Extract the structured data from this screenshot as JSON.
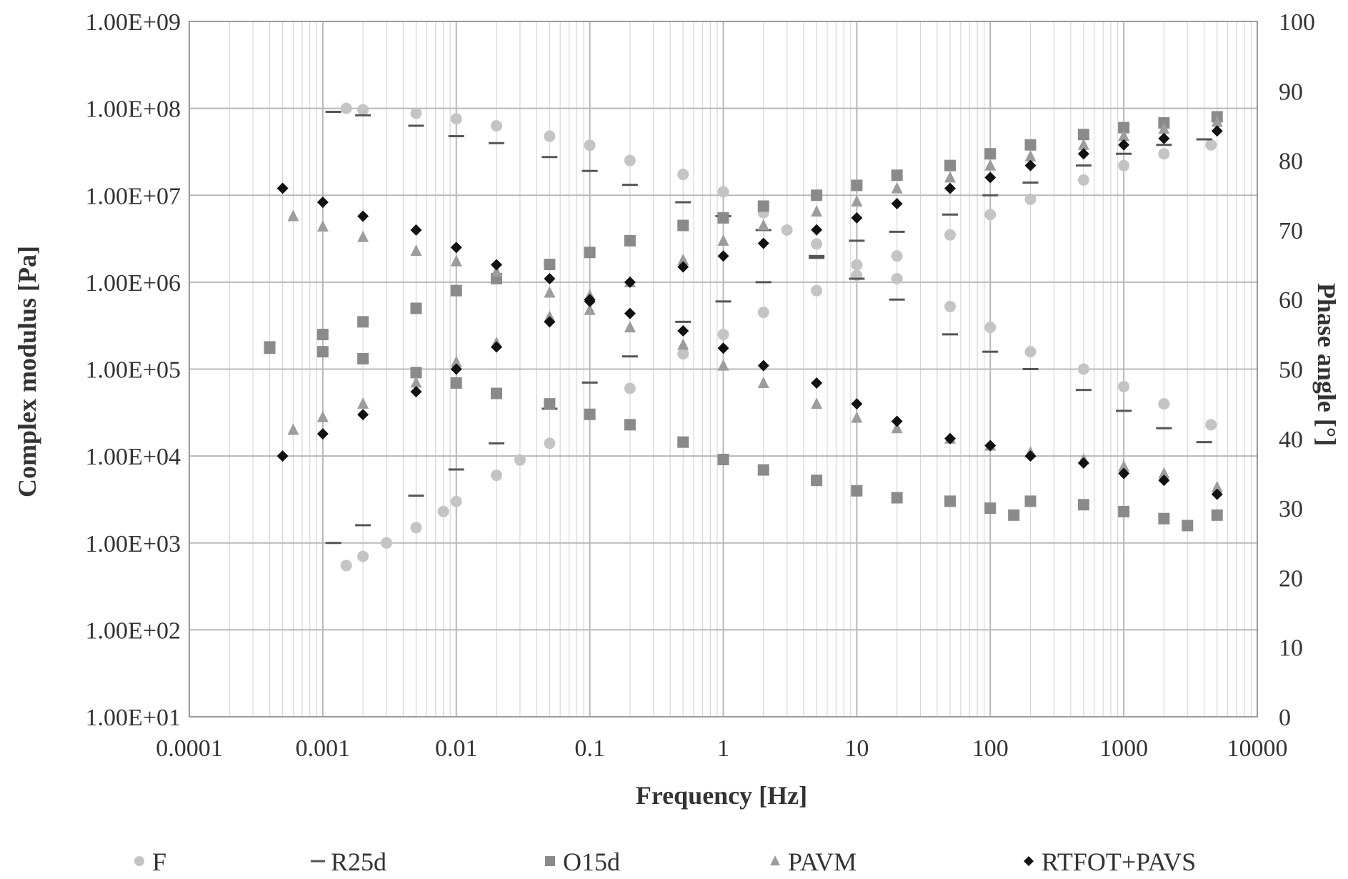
{
  "chart_data": {
    "type": "scatter",
    "xlabel": "Frequency [Hz]",
    "ylabel": "Complex modulus [Pa]",
    "y2label": "Phase angle [°]",
    "x_scale": "log",
    "y_scale": "log",
    "xlim": [
      0.0001,
      10000
    ],
    "ylim": [
      10,
      1000000000
    ],
    "y2lim": [
      0,
      100
    ],
    "x_ticks": [
      "0.0001",
      "0.001",
      "0.01",
      "0.1",
      "1",
      "10",
      "100",
      "1000",
      "10000"
    ],
    "y_ticks": [
      "1.00E+01",
      "1.00E+02",
      "1.00E+03",
      "1.00E+04",
      "1.00E+05",
      "1.00E+06",
      "1.00E+07",
      "1.00E+08",
      "1.00E+09"
    ],
    "y2_ticks": [
      "0",
      "10",
      "20",
      "30",
      "40",
      "50",
      "60",
      "70",
      "80",
      "90",
      "100"
    ],
    "grid": true,
    "legend_position": "bottom",
    "series": [
      {
        "name": "F",
        "marker": "circle",
        "color": "#c4c4c4",
        "modulus": [
          [
            0.0015,
            550
          ],
          [
            0.002,
            700
          ],
          [
            0.003,
            1000
          ],
          [
            0.005,
            1500
          ],
          [
            0.008,
            2300
          ],
          [
            0.01,
            3000
          ],
          [
            0.02,
            6000
          ],
          [
            0.03,
            9000
          ],
          [
            0.05,
            14000
          ],
          [
            0.1,
            30000
          ],
          [
            0.2,
            60000
          ],
          [
            0.5,
            150000
          ],
          [
            1,
            250000
          ],
          [
            2,
            450000
          ],
          [
            5,
            800000
          ],
          [
            10,
            1200000
          ],
          [
            20,
            2000000
          ],
          [
            50,
            3500000
          ],
          [
            100,
            6000000
          ],
          [
            200,
            9000000
          ],
          [
            500,
            15000000
          ],
          [
            1000,
            22000000
          ],
          [
            2000,
            30000000
          ],
          [
            4500,
            38000000
          ]
        ],
        "phase": [
          [
            0.0015,
            87.5
          ],
          [
            0.002,
            87.3
          ],
          [
            0.005,
            86.8
          ],
          [
            0.01,
            86
          ],
          [
            0.02,
            85
          ],
          [
            0.05,
            83.5
          ],
          [
            0.1,
            82.2
          ],
          [
            0.2,
            80
          ],
          [
            0.5,
            78
          ],
          [
            1,
            75.5
          ],
          [
            2,
            72.5
          ],
          [
            3,
            70
          ],
          [
            5,
            68
          ],
          [
            10,
            65
          ],
          [
            20,
            63
          ],
          [
            50,
            59
          ],
          [
            100,
            56
          ],
          [
            200,
            52.5
          ],
          [
            500,
            50
          ],
          [
            1000,
            47.5
          ],
          [
            2000,
            45
          ],
          [
            4500,
            42
          ]
        ]
      },
      {
        "name": "R25d",
        "marker": "dash",
        "color": "#555555",
        "modulus": [
          [
            0.0012,
            1000
          ],
          [
            0.002,
            1600
          ],
          [
            0.005,
            3500
          ],
          [
            0.01,
            7000
          ],
          [
            0.02,
            14000
          ],
          [
            0.05,
            35000
          ],
          [
            0.1,
            70000
          ],
          [
            0.2,
            140000
          ],
          [
            0.5,
            350000
          ],
          [
            1,
            600000
          ],
          [
            2,
            1000000
          ],
          [
            5,
            2000000
          ],
          [
            10,
            3000000
          ],
          [
            20,
            3800000
          ],
          [
            50,
            6000000
          ],
          [
            100,
            10000000
          ],
          [
            200,
            14000000
          ],
          [
            500,
            22000000
          ],
          [
            1000,
            30000000
          ],
          [
            2000,
            38000000
          ],
          [
            4000,
            44000000
          ]
        ],
        "phase": [
          [
            0.0012,
            87
          ],
          [
            0.002,
            86.5
          ],
          [
            0.005,
            85
          ],
          [
            0.01,
            83.5
          ],
          [
            0.02,
            82.5
          ],
          [
            0.05,
            80.5
          ],
          [
            0.1,
            78.5
          ],
          [
            0.2,
            76.5
          ],
          [
            0.5,
            74
          ],
          [
            1,
            72
          ],
          [
            2,
            70
          ],
          [
            5,
            66
          ],
          [
            10,
            63
          ],
          [
            20,
            60
          ],
          [
            50,
            55
          ],
          [
            100,
            52.5
          ],
          [
            200,
            50
          ],
          [
            500,
            47
          ],
          [
            1000,
            44
          ],
          [
            2000,
            41.5
          ],
          [
            4000,
            39.5
          ]
        ]
      },
      {
        "name": "O15d",
        "marker": "square",
        "color": "#8a8a8a",
        "modulus": [
          [
            0.0004,
            180000
          ],
          [
            0.001,
            250000
          ],
          [
            0.002,
            350000
          ],
          [
            0.005,
            500000
          ],
          [
            0.01,
            800000
          ],
          [
            0.02,
            1100000
          ],
          [
            0.05,
            1600000
          ],
          [
            0.1,
            2200000
          ],
          [
            0.2,
            3000000
          ],
          [
            0.5,
            4500000
          ],
          [
            1,
            5500000
          ],
          [
            2,
            7500000
          ],
          [
            5,
            10000000
          ],
          [
            10,
            13000000
          ],
          [
            20,
            17000000
          ],
          [
            50,
            22000000
          ],
          [
            100,
            30000000
          ],
          [
            200,
            38000000
          ],
          [
            500,
            50000000
          ],
          [
            1000,
            60000000
          ],
          [
            2000,
            68000000
          ],
          [
            5000,
            80000000
          ]
        ],
        "phase": [
          [
            0.0004,
            53
          ],
          [
            0.001,
            52.5
          ],
          [
            0.002,
            51.5
          ],
          [
            0.005,
            49.5
          ],
          [
            0.01,
            48
          ],
          [
            0.02,
            46.5
          ],
          [
            0.05,
            45
          ],
          [
            0.1,
            43.5
          ],
          [
            0.2,
            42
          ],
          [
            0.5,
            39.5
          ],
          [
            1,
            37
          ],
          [
            2,
            35.5
          ],
          [
            5,
            34
          ],
          [
            10,
            32.5
          ],
          [
            20,
            31.5
          ],
          [
            50,
            31
          ],
          [
            100,
            30
          ],
          [
            150,
            29
          ],
          [
            200,
            31
          ],
          [
            500,
            30.5
          ],
          [
            1000,
            29.5
          ],
          [
            2000,
            28.5
          ],
          [
            3000,
            27.5
          ],
          [
            5000,
            29
          ]
        ]
      },
      {
        "name": "PAVM",
        "marker": "triangle",
        "color": "#9c9c9c",
        "modulus": [
          [
            0.0006,
            20000
          ],
          [
            0.001,
            28000
          ],
          [
            0.002,
            40000
          ],
          [
            0.005,
            70000
          ],
          [
            0.01,
            120000
          ],
          [
            0.02,
            200000
          ],
          [
            0.05,
            400000
          ],
          [
            0.1,
            700000
          ],
          [
            0.2,
            1000000
          ],
          [
            0.5,
            1800000
          ],
          [
            1,
            3000000
          ],
          [
            2,
            4500000
          ],
          [
            5,
            6500000
          ],
          [
            10,
            8500000
          ],
          [
            20,
            12000000
          ],
          [
            50,
            16000000
          ],
          [
            100,
            22000000
          ],
          [
            200,
            28000000
          ],
          [
            500,
            38000000
          ],
          [
            1000,
            48000000
          ],
          [
            2000,
            58000000
          ],
          [
            5000,
            70000000
          ]
        ],
        "phase": [
          [
            0.0006,
            72
          ],
          [
            0.001,
            70.5
          ],
          [
            0.002,
            69
          ],
          [
            0.005,
            67
          ],
          [
            0.01,
            65.5
          ],
          [
            0.02,
            64
          ],
          [
            0.05,
            61
          ],
          [
            0.1,
            58.5
          ],
          [
            0.2,
            56
          ],
          [
            0.5,
            53.5
          ],
          [
            1,
            50.5
          ],
          [
            2,
            48
          ],
          [
            5,
            45
          ],
          [
            10,
            43
          ],
          [
            20,
            41.5
          ],
          [
            50,
            40
          ],
          [
            100,
            39
          ],
          [
            200,
            38
          ],
          [
            500,
            37
          ],
          [
            1000,
            36
          ],
          [
            2000,
            35
          ],
          [
            5000,
            33
          ]
        ]
      },
      {
        "name": "RTFOT+PAVS",
        "marker": "diamond",
        "color": "#111111",
        "modulus": [
          [
            0.0005,
            10000
          ],
          [
            0.001,
            18000
          ],
          [
            0.002,
            30000
          ],
          [
            0.005,
            55000
          ],
          [
            0.01,
            100000
          ],
          [
            0.02,
            180000
          ],
          [
            0.05,
            350000
          ],
          [
            0.1,
            600000
          ],
          [
            0.2,
            1000000
          ],
          [
            0.5,
            1500000
          ],
          [
            1,
            2000000
          ],
          [
            2,
            2800000
          ],
          [
            5,
            4000000
          ],
          [
            10,
            5500000
          ],
          [
            20,
            8000000
          ],
          [
            50,
            12000000
          ],
          [
            100,
            16000000
          ],
          [
            200,
            22000000
          ],
          [
            500,
            30000000
          ],
          [
            1000,
            38000000
          ],
          [
            2000,
            45000000
          ],
          [
            5000,
            55000000
          ]
        ],
        "phase": [
          [
            0.0005,
            76
          ],
          [
            0.001,
            74
          ],
          [
            0.002,
            72
          ],
          [
            0.005,
            70
          ],
          [
            0.01,
            67.5
          ],
          [
            0.02,
            65
          ],
          [
            0.05,
            63
          ],
          [
            0.1,
            60
          ],
          [
            0.2,
            58
          ],
          [
            0.5,
            55.5
          ],
          [
            1,
            53
          ],
          [
            2,
            50.5
          ],
          [
            5,
            48
          ],
          [
            10,
            45
          ],
          [
            20,
            42.5
          ],
          [
            50,
            40
          ],
          [
            100,
            39
          ],
          [
            200,
            37.5
          ],
          [
            500,
            36.5
          ],
          [
            1000,
            35
          ],
          [
            2000,
            34
          ],
          [
            5000,
            32
          ]
        ]
      }
    ]
  }
}
